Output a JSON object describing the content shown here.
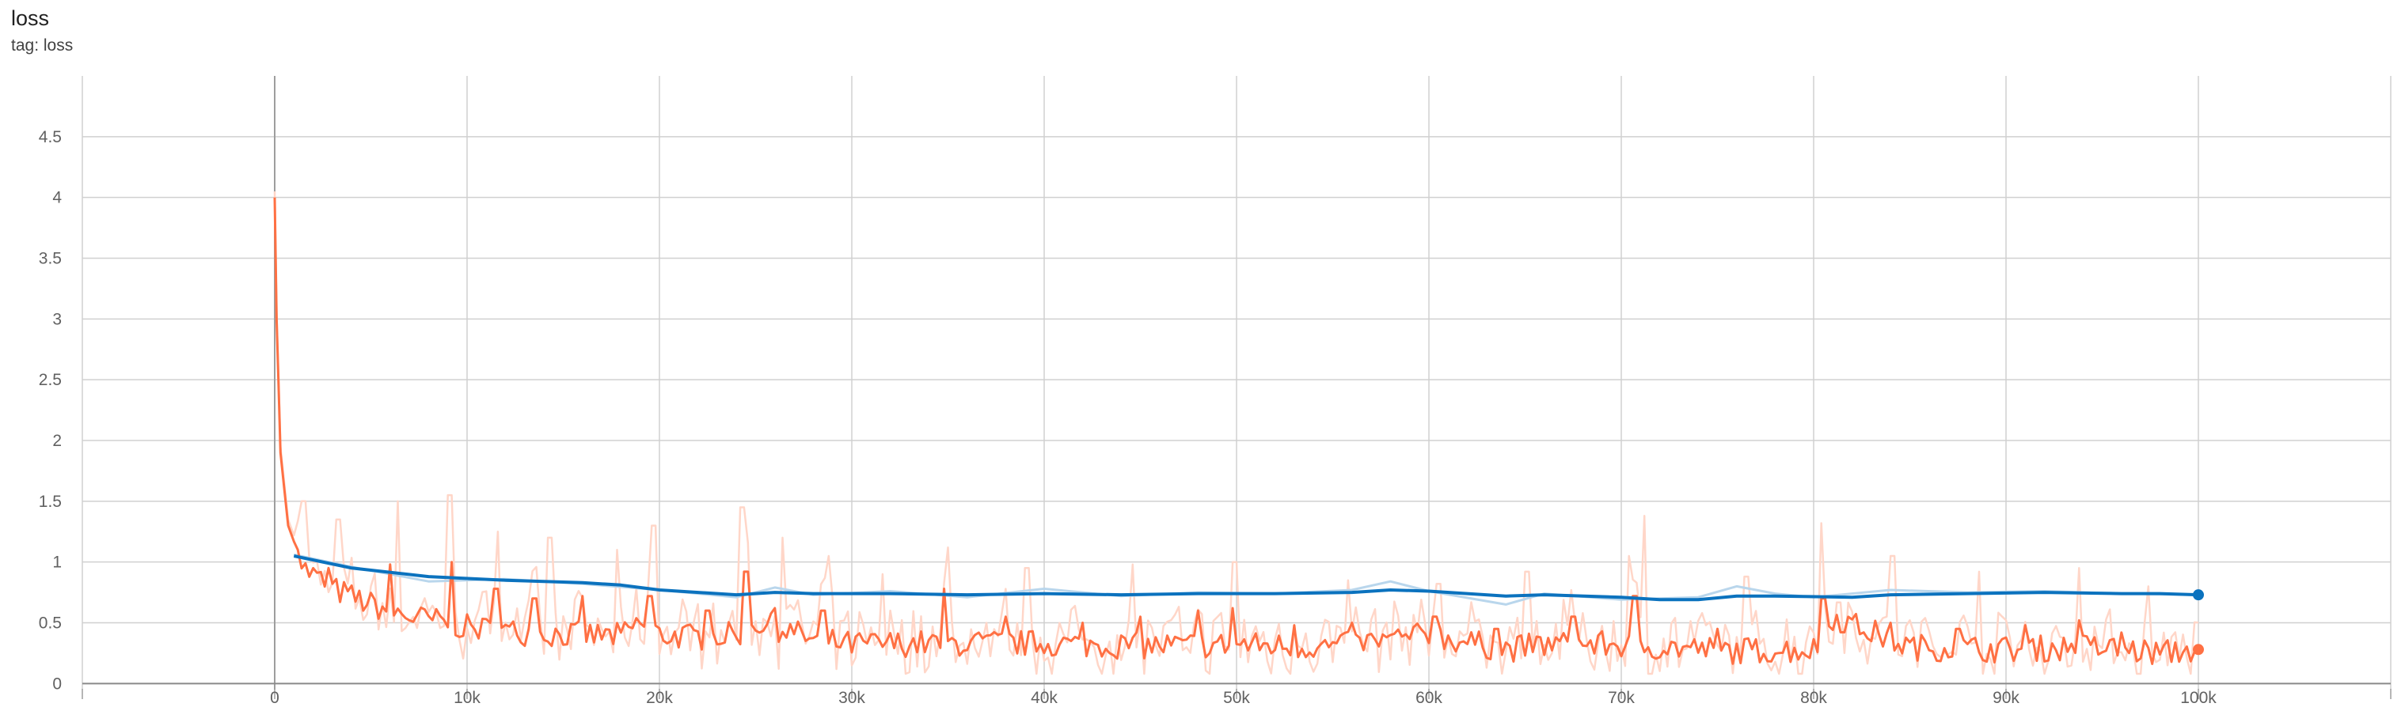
{
  "header": {
    "title": "loss",
    "subtitle": "tag: loss"
  },
  "colors": {
    "eval": "#0b72be",
    "eval_raw": "#b9d6ec",
    "train": "#ff7043",
    "train_raw": "#ffd6c8",
    "grid": "#d0d0d0",
    "zero_axis": "#8a8a8a",
    "y_zero_axis": "#9e9e9e"
  },
  "chart_data": {
    "type": "line",
    "title": "loss",
    "xlabel": "",
    "ylabel": "",
    "xlim": [
      -10000,
      110000
    ],
    "ylim": [
      -0.05,
      5.0
    ],
    "grid": true,
    "x_ticks": [
      0,
      10000,
      20000,
      30000,
      40000,
      50000,
      60000,
      70000,
      80000,
      90000,
      100000
    ],
    "x_tick_labels": [
      "0",
      "10k",
      "20k",
      "30k",
      "40k",
      "50k",
      "60k",
      "70k",
      "80k",
      "90k",
      "100k"
    ],
    "y_ticks": [
      0,
      0.5,
      1,
      1.5,
      2,
      2.5,
      3,
      3.5,
      4,
      4.5
    ],
    "y_tick_labels": [
      "0",
      "0.5",
      "1",
      "1.5",
      "2",
      "2.5",
      "3",
      "3.5",
      "4",
      "4.5"
    ],
    "series": [
      {
        "role": "eval",
        "raw": {
          "x": [
            1000,
            4000,
            8000,
            12000,
            16000,
            20000,
            24000,
            26000,
            28000,
            32000,
            36000,
            40000,
            44000,
            48000,
            52000,
            56000,
            58000,
            60000,
            64000,
            66000,
            70000,
            74000,
            76000,
            78000,
            80000,
            84000,
            88000,
            92000,
            96000,
            100000
          ],
          "y": [
            1.06,
            0.96,
            0.84,
            0.86,
            0.82,
            0.77,
            0.71,
            0.79,
            0.73,
            0.76,
            0.71,
            0.78,
            0.72,
            0.75,
            0.74,
            0.77,
            0.84,
            0.76,
            0.65,
            0.74,
            0.69,
            0.71,
            0.8,
            0.74,
            0.71,
            0.77,
            0.75,
            0.76,
            0.74,
            0.73
          ]
        },
        "smoothed": {
          "x": [
            1000,
            4000,
            8000,
            12000,
            16000,
            18000,
            20000,
            24000,
            26000,
            28000,
            32000,
            36000,
            40000,
            44000,
            48000,
            52000,
            56000,
            58000,
            60000,
            64000,
            66000,
            70000,
            72000,
            74000,
            76000,
            78000,
            82000,
            84000,
            88000,
            92000,
            96000,
            98000,
            100000
          ],
          "y": [
            1.05,
            0.95,
            0.88,
            0.85,
            0.83,
            0.81,
            0.77,
            0.73,
            0.75,
            0.74,
            0.74,
            0.73,
            0.74,
            0.73,
            0.74,
            0.74,
            0.75,
            0.77,
            0.76,
            0.72,
            0.73,
            0.71,
            0.69,
            0.69,
            0.72,
            0.72,
            0.71,
            0.73,
            0.74,
            0.75,
            0.74,
            0.74,
            0.73
          ]
        },
        "end_point": {
          "x": 100000,
          "y": 0.73
        }
      },
      {
        "role": "train",
        "key_points": {
          "x": [
            0,
            100,
            300,
            700,
            1500,
            3000,
            5000,
            7000,
            9000,
            10000,
            12000,
            14000,
            16000,
            18000,
            19000,
            20000,
            22000,
            24000,
            25000,
            27000,
            28000,
            30000,
            33000,
            36000,
            40000,
            45000,
            50000,
            55000,
            60000,
            64000,
            66000,
            70000,
            72000,
            76000,
            80000,
            81000,
            85000,
            90000,
            94000,
            96000,
            98000,
            100000
          ],
          "y": [
            4.0,
            3.0,
            1.9,
            1.3,
            0.95,
            0.78,
            0.65,
            0.55,
            0.5,
            0.46,
            0.43,
            0.41,
            0.4,
            0.39,
            0.5,
            0.4,
            0.38,
            0.4,
            0.5,
            0.42,
            0.36,
            0.32,
            0.33,
            0.33,
            0.33,
            0.31,
            0.32,
            0.3,
            0.4,
            0.28,
            0.32,
            0.32,
            0.3,
            0.27,
            0.28,
            0.55,
            0.3,
            0.28,
            0.3,
            0.28,
            0.25,
            0.28
          ]
        },
        "spikes": {
          "x": [
            1200,
            2800,
            6000,
            9200,
            11500,
            13500,
            16000,
            19500,
            22500,
            24500,
            26000,
            28500,
            34800,
            38000,
            42000,
            45000,
            48000,
            49800,
            53000,
            56000,
            60300,
            63500,
            67500,
            70700,
            75000,
            80500,
            84000,
            87500,
            91000,
            93800,
            96000
          ],
          "y": [
            1.1,
            0.95,
            0.98,
            1.0,
            0.78,
            0.7,
            0.72,
            0.72,
            0.6,
            0.92,
            0.62,
            0.6,
            0.78,
            0.55,
            0.5,
            0.55,
            0.6,
            0.62,
            0.48,
            0.5,
            0.55,
            0.45,
            0.55,
            0.72,
            0.45,
            0.7,
            0.5,
            0.45,
            0.48,
            0.52,
            0.42
          ]
        },
        "raw_spikes": {
          "x": [
            1500,
            3300,
            6400,
            9100,
            11600,
            14300,
            17800,
            19700,
            24300,
            26400,
            28800,
            31600,
            35000,
            39100,
            44600,
            49900,
            55800,
            60500,
            65100,
            70400,
            71200,
            76500,
            80400,
            84100,
            88600,
            93800,
            97400
          ],
          "y": [
            1.5,
            1.35,
            1.5,
            1.55,
            1.25,
            1.2,
            1.1,
            1.3,
            1.45,
            1.2,
            1.05,
            0.9,
            1.12,
            0.95,
            0.98,
            1.0,
            0.85,
            0.82,
            0.92,
            1.05,
            1.38,
            0.88,
            1.32,
            1.05,
            0.92,
            0.95,
            0.8
          ]
        },
        "end_point": {
          "x": 100000,
          "y": 0.28
        }
      }
    ]
  }
}
